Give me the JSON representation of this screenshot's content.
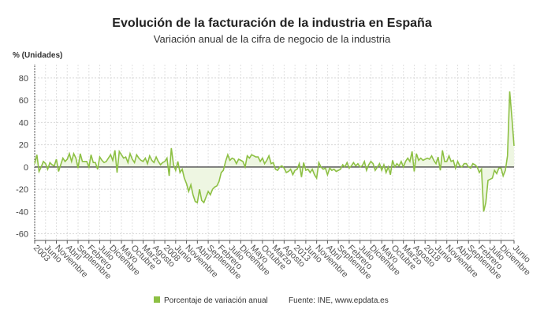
{
  "chart_data": {
    "type": "area",
    "title": "Evolución de la facturación de la industria en España",
    "subtitle": "Variación anual de la cifra de negocio de la industria",
    "ylabel": "% (Unidades)",
    "xlabel": "",
    "x_start": "2003-01",
    "x_end": "2021-06",
    "frequency": "monthly",
    "ylim": [
      -66,
      92
    ],
    "yticks": [
      -60,
      -40,
      -20,
      0,
      20,
      40,
      60,
      80
    ],
    "grid": true,
    "legend": "bottom",
    "colors": {
      "series": "#8dc044",
      "fill": "#eef6e2",
      "zero_line": "#555555"
    },
    "x_tick_labels": [
      "2003",
      "Junio",
      "Noviembre",
      "Abril",
      "Septiembre",
      "Febrero",
      "Julio",
      "Diciembre",
      "Mayo",
      "Octubre",
      "Marzo",
      "Agosto",
      "2008",
      "Junio",
      "Noviembre",
      "Abril",
      "Septiembre",
      "Febrero",
      "Julio",
      "Diciembre",
      "Mayo",
      "Octubre",
      "Marzo",
      "Agosto",
      "2013",
      "Junio",
      "Noviembre",
      "Abril",
      "Septiembre",
      "Febrero",
      "Julio",
      "Diciembre",
      "Mayo",
      "Octubre",
      "Marzo",
      "Agosto",
      "2018",
      "Junio",
      "Noviembre",
      "Abril",
      "Septiembre",
      "Febrero",
      "Julio",
      "Diciembre",
      "Junio"
    ],
    "series": [
      {
        "name": "Porcentaje de variación anual",
        "values": [
          3,
          11,
          -4,
          0,
          5,
          3,
          -2,
          4,
          2,
          1,
          7,
          -4,
          2,
          8,
          5,
          7,
          12,
          5,
          12,
          8,
          -1,
          12,
          5,
          5,
          5,
          0,
          11,
          4,
          4,
          -2,
          9,
          6,
          4,
          5,
          8,
          11,
          6,
          15,
          -5,
          14,
          11,
          8,
          9,
          4,
          12,
          7,
          4,
          11,
          8,
          6,
          5,
          8,
          3,
          10,
          6,
          4,
          9,
          5,
          2,
          4,
          5,
          8,
          -8,
          17,
          2,
          -3,
          5,
          -5,
          -2,
          -10,
          -15,
          -22,
          -16,
          -25,
          -31,
          -32,
          -20,
          -30,
          -32,
          -27,
          -22,
          -25,
          -20,
          -18,
          -17,
          -13,
          -5,
          -3,
          5,
          11,
          6,
          8,
          7,
          3,
          7,
          6,
          5,
          0,
          10,
          8,
          11,
          10,
          9,
          9,
          5,
          8,
          3,
          6,
          10,
          3,
          4,
          -2,
          -3,
          0,
          1,
          -1,
          -5,
          -4,
          -2,
          -7,
          -3,
          -2,
          3,
          -9,
          4,
          -3,
          -2,
          -5,
          -2,
          -7,
          -10,
          4,
          0,
          -2,
          -1,
          -7,
          -1,
          -3,
          -2,
          -4,
          -3,
          -2,
          2,
          0,
          4,
          -1,
          1,
          4,
          1,
          3,
          0,
          1,
          5,
          -3,
          2,
          5,
          3,
          -3,
          0,
          3,
          -3,
          2,
          -5,
          0,
          -7,
          6,
          0,
          3,
          1,
          5,
          0,
          5,
          8,
          5,
          14,
          -4,
          12,
          6,
          8,
          6,
          7,
          8,
          7,
          10,
          6,
          3,
          9,
          -3,
          15,
          5,
          5,
          10,
          5,
          6,
          -1,
          5,
          1,
          0,
          3,
          3,
          0,
          -1,
          3,
          2,
          0,
          -5,
          -2,
          -40,
          -32,
          -12,
          -11,
          -10,
          -3,
          -6,
          -1,
          -1,
          -8,
          -3,
          10,
          68,
          45,
          19
        ]
      }
    ],
    "source": "Fuente: INE, www.epdata.es"
  }
}
